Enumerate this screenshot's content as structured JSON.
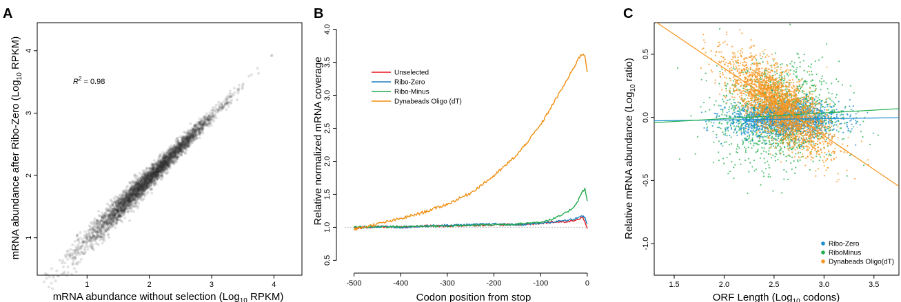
{
  "panels": [
    {
      "letter": "A"
    },
    {
      "letter": "B"
    },
    {
      "letter": "C"
    }
  ],
  "chart_data": [
    {
      "type": "scatter",
      "panel": "A",
      "xlabel": {
        "main": "mRNA abundance without selection (Log",
        "sub": "10",
        "tail": " RPKM)"
      },
      "ylabel": {
        "main": "mRNA abundance after Ribo-Zero (Log",
        "sub": "10",
        "tail": " RPKM)"
      },
      "annotation": {
        "lhs": "R",
        "sup": "2",
        "rhs": " = 0.98"
      },
      "xlim": [
        0.2,
        4.45
      ],
      "ylim": [
        0.4,
        4.45
      ],
      "xticks": [
        1,
        2,
        3,
        4
      ],
      "yticks": [
        1,
        2,
        3,
        4
      ],
      "point_color": "#333333",
      "fit": {
        "slope": 1.0,
        "intercept": -0.05,
        "x_range": [
          0.3,
          4.3
        ],
        "spread_sd": 0.07
      },
      "n_points": 3500
    },
    {
      "type": "line",
      "panel": "B",
      "xlabel": "Codon position from stop",
      "ylabel": "Relative normalized mRNA coverage",
      "xlim": [
        -520,
        12
      ],
      "ylim": [
        0.4,
        4.1
      ],
      "xticks": [
        -500,
        -400,
        -300,
        -200,
        -100,
        0
      ],
      "yticks": [
        0.5,
        1.0,
        1.5,
        2.0,
        2.5,
        3.0,
        3.5,
        4.0
      ],
      "reference_line": 1.0,
      "legend_position": "top-left",
      "x": [
        -500,
        -450,
        -400,
        -350,
        -300,
        -250,
        -200,
        -150,
        -100,
        -75,
        -50,
        -30,
        -20,
        -10,
        -5,
        0
      ],
      "series": [
        {
          "name": "Unselected",
          "color": "#e8141a",
          "values": [
            0.99,
            1.01,
            1.0,
            1.02,
            1.02,
            1.03,
            1.04,
            1.04,
            1.06,
            1.08,
            1.08,
            1.1,
            1.13,
            1.15,
            1.08,
            0.98
          ]
        },
        {
          "name": "Ribo-Zero",
          "color": "#1a7fc0",
          "values": [
            1.0,
            1.01,
            1.0,
            1.02,
            1.03,
            1.04,
            1.05,
            1.04,
            1.06,
            1.08,
            1.1,
            1.12,
            1.15,
            1.17,
            1.14,
            1.05
          ]
        },
        {
          "name": "Ribo-Minus",
          "color": "#1ea84a",
          "values": [
            1.0,
            1.01,
            1.01,
            1.02,
            1.02,
            1.03,
            1.04,
            1.05,
            1.08,
            1.12,
            1.2,
            1.3,
            1.4,
            1.55,
            1.58,
            1.4
          ]
        },
        {
          "name": "Dynabeads Oligo (dT)",
          "color": "#f08c0c",
          "values": [
            0.97,
            1.05,
            1.13,
            1.23,
            1.35,
            1.52,
            1.78,
            2.1,
            2.55,
            2.85,
            3.15,
            3.4,
            3.55,
            3.63,
            3.6,
            3.35
          ]
        }
      ]
    },
    {
      "type": "scatter",
      "panel": "C",
      "xlabel": {
        "main": "ORF Length (Log",
        "sub": "10",
        "tail": " codons)"
      },
      "ylabel": {
        "main": "Relative mRNA abundance (Log",
        "sub": "10",
        "tail": " ratio)"
      },
      "xlim": [
        1.3,
        3.75
      ],
      "ylim": [
        -1.25,
        0.75
      ],
      "xticks": [
        1.5,
        2.0,
        2.5,
        3.0,
        3.5
      ],
      "yticks": [
        -1.0,
        -0.5,
        0.0,
        0.5
      ],
      "legend_position": "bottom-right",
      "series": [
        {
          "name": "Ribo-Zero",
          "color": "#1a8fd0",
          "fit": {
            "slope": 0.01,
            "intercept": -0.04
          }
        },
        {
          "name": "RiboMinus",
          "color": "#22b04e",
          "fit": {
            "slope": 0.045,
            "intercept": -0.1
          }
        },
        {
          "name": "Dynabeads Oligo(dT)",
          "color": "#f7941d",
          "fit": {
            "slope": -0.535,
            "intercept": 1.46
          }
        }
      ]
    }
  ]
}
